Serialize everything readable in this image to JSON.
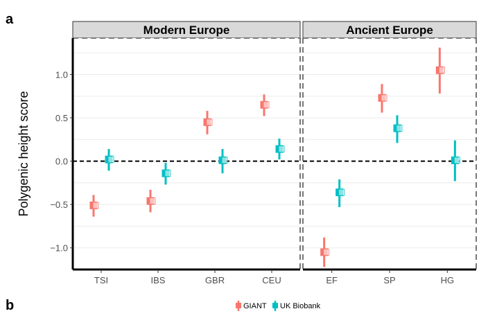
{
  "panel_labels": {
    "a": "a",
    "b": "b"
  },
  "chart_data": {
    "type": "scatter",
    "title": "",
    "ylabel": "Polygenic height score",
    "xlabel": "",
    "ylim": [
      -1.25,
      1.42
    ],
    "yticks": [
      -1.0,
      -0.5,
      0.0,
      0.5,
      1.0
    ],
    "ytick_labels": [
      "−1.0",
      "−0.5",
      "0.0",
      "0.5",
      "1.0"
    ],
    "reference_line": 0,
    "grid": true,
    "legend_position": "bottom",
    "series": [
      {
        "name": "GIANT",
        "color": "#F8766D"
      },
      {
        "name": "UK Biobank",
        "color": "#00BFC4"
      }
    ],
    "panels": [
      {
        "title": "Modern Europe",
        "categories": [
          "TSI",
          "IBS",
          "GBR",
          "CEU"
        ],
        "points": [
          {
            "category": "TSI",
            "series": "GIANT",
            "value": -0.51,
            "low": -0.64,
            "high": -0.39
          },
          {
            "category": "TSI",
            "series": "UK Biobank",
            "value": 0.02,
            "low": -0.11,
            "high": 0.14
          },
          {
            "category": "IBS",
            "series": "GIANT",
            "value": -0.46,
            "low": -0.59,
            "high": -0.33
          },
          {
            "category": "IBS",
            "series": "UK Biobank",
            "value": -0.14,
            "low": -0.27,
            "high": -0.02
          },
          {
            "category": "GBR",
            "series": "GIANT",
            "value": 0.45,
            "low": 0.31,
            "high": 0.58
          },
          {
            "category": "GBR",
            "series": "UK Biobank",
            "value": 0.01,
            "low": -0.14,
            "high": 0.14
          },
          {
            "category": "CEU",
            "series": "GIANT",
            "value": 0.65,
            "low": 0.52,
            "high": 0.77
          },
          {
            "category": "CEU",
            "series": "UK Biobank",
            "value": 0.14,
            "low": 0.02,
            "high": 0.26
          }
        ]
      },
      {
        "title": "Ancient Europe",
        "categories": [
          "EF",
          "SP",
          "HG"
        ],
        "points": [
          {
            "category": "EF",
            "series": "GIANT",
            "value": -1.05,
            "low": -1.22,
            "high": -0.88
          },
          {
            "category": "EF",
            "series": "UK Biobank",
            "value": -0.36,
            "low": -0.53,
            "high": -0.21
          },
          {
            "category": "SP",
            "series": "GIANT",
            "value": 0.73,
            "low": 0.56,
            "high": 0.89
          },
          {
            "category": "SP",
            "series": "UK Biobank",
            "value": 0.38,
            "low": 0.21,
            "high": 0.53
          },
          {
            "category": "HG",
            "series": "GIANT",
            "value": 1.05,
            "low": 0.78,
            "high": 1.31
          },
          {
            "category": "HG",
            "series": "UK Biobank",
            "value": 0.01,
            "low": -0.23,
            "high": 0.24
          }
        ]
      }
    ]
  }
}
